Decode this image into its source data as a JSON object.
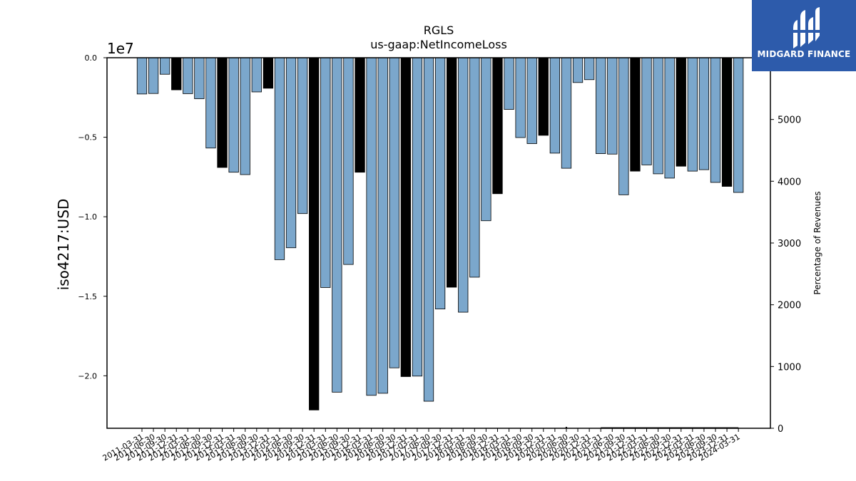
{
  "brand": {
    "name": "MIDGARD FINANCE",
    "color": "#2d5bab",
    "logo_icon": "midgard-logo-icon"
  },
  "chart_data": {
    "type": "bar",
    "title": "RGLS",
    "subtitle": "us-gaap:NetIncomeLoss",
    "ylabel": "iso4217:USD",
    "y_offset_label": "1e7",
    "y2label": "Percentage of Revenues",
    "ylim": [
      -23300000,
      0
    ],
    "y2lim": [
      0,
      6000
    ],
    "yticks": [
      "0.0",
      "−0.5",
      "−1.0",
      "−1.5",
      "−2.0"
    ],
    "ytick_values": [
      0,
      -5000000,
      -10000000,
      -15000000,
      -20000000
    ],
    "y2ticks": [
      "0",
      "1000",
      "2000",
      "3000",
      "4000",
      "5000"
    ],
    "y2tick_values": [
      0,
      1000,
      2000,
      3000,
      4000,
      5000
    ],
    "colors": {
      "quarterly": "#7ba7cc",
      "annual": "#000000",
      "edge": "#000000"
    },
    "categories": [
      "2011-03-31",
      "2011-06-30",
      "2011-09-30",
      "2011-12-31",
      "2012-03-31",
      "2012-06-30",
      "2012-09-30",
      "2012-12-31",
      "2013-03-31",
      "2013-06-30",
      "2013-09-30",
      "2013-12-31",
      "2014-03-31",
      "2014-06-30",
      "2014-09-30",
      "2014-12-31",
      "2015-03-31",
      "2015-06-30",
      "2015-09-30",
      "2015-12-31",
      "2016-03-31",
      "2016-06-30",
      "2016-09-30",
      "2016-12-31",
      "2017-03-31",
      "2017-06-30",
      "2017-09-30",
      "2017-12-31",
      "2018-03-31",
      "2018-06-30",
      "2018-09-30",
      "2018-12-31",
      "2019-03-31",
      "2019-06-30",
      "2019-09-30",
      "2019-12-31",
      "2020-03-31",
      "2020-06-30",
      "2020-09-30",
      "2020-12-31",
      "2021-03-31",
      "2021-06-30",
      "2021-09-30",
      "2021-12-31",
      "2022-03-31",
      "2022-06-30",
      "2022-09-30",
      "2022-12-31",
      "2023-03-31",
      "2023-06-30",
      "2023-09-30",
      "2023-12-31",
      "2024-03-31"
    ],
    "tick_labels": [
      "2011-03-31",
      "2011-06-30",
      "2011-09-30",
      "2011-12-31",
      "2012-03-31",
      "2012-06-30",
      "2012-09-30",
      "2012-12-31",
      "2013-03-31",
      "2013-06-30",
      "2013-09-30",
      "2013-12-31",
      "2014-03-31",
      "2014-06-30",
      "2014-09-30",
      "2014-12-31",
      "2015-03-31",
      "2015-06-30",
      "2015-09-30",
      "2015-12-31",
      "2016-03-31",
      "2016-06-30",
      "2016-09-30",
      "2016-12-31",
      "2017-03-31",
      "2017-06-30",
      "2017-09-30",
      "2017-12-31",
      "2018-03-31",
      "2018-06-30",
      "2018-09-30",
      "2018-12-31",
      "2019-03-31",
      "2019-06-30",
      "2019-09-30",
      "2019-12-31",
      "2020-03-31",
      "2020-06-30",
      "2020-09-30",
      "2020-12-31",
      "2021-03-31",
      "2021-06-30",
      "2021-09-30",
      "2021-12-31",
      "2022-03-31",
      "2022-06-30",
      "2022-09-30",
      "2022-12-31",
      "2023-03-31",
      "2023-06-30",
      "2023-09-30",
      "2023-12-31",
      "2024-03-31"
    ],
    "values": [
      -2280000,
      -2250000,
      -1040000,
      -2020000,
      -2260000,
      -2580000,
      -5680000,
      -6900000,
      -7200000,
      -7350000,
      -2150000,
      -1920000,
      -12700000,
      -11950000,
      -9800000,
      -22150000,
      -14450000,
      -21030000,
      -13000000,
      -7200000,
      -21230000,
      -21100000,
      -19500000,
      -20050000,
      -20020000,
      -21600000,
      -15800000,
      -14430000,
      -16000000,
      -13800000,
      -10250000,
      -8550000,
      -3250000,
      -5020000,
      -5400000,
      -4880000,
      -6000000,
      -6950000,
      -1560000,
      -1380000,
      -6030000,
      -6060000,
      -8620000,
      -7130000,
      -6740000,
      -7300000,
      -7570000,
      -6820000,
      -7130000,
      -7040000,
      -7840000,
      -8090000,
      -8470000
    ],
    "annual": [
      false,
      false,
      false,
      true,
      false,
      false,
      false,
      true,
      false,
      false,
      false,
      true,
      false,
      false,
      false,
      true,
      false,
      false,
      false,
      true,
      false,
      false,
      false,
      true,
      false,
      false,
      false,
      true,
      false,
      false,
      false,
      true,
      false,
      false,
      false,
      true,
      false,
      false,
      false,
      false,
      false,
      false,
      false,
      true,
      false,
      false,
      false,
      true,
      false,
      false,
      false,
      true,
      false
    ],
    "pct_of_revenues": [
      null,
      null,
      null,
      null,
      null,
      null,
      null,
      null,
      null,
      null,
      null,
      null,
      null,
      null,
      null,
      null,
      null,
      null,
      null,
      null,
      null,
      null,
      null,
      null,
      null,
      null,
      null,
      null,
      null,
      null,
      null,
      null,
      null,
      null,
      null,
      null,
      null,
      10,
      null,
      null,
      5,
      5,
      5,
      5,
      5,
      5,
      5,
      5,
      5,
      5,
      5,
      5,
      5
    ]
  }
}
